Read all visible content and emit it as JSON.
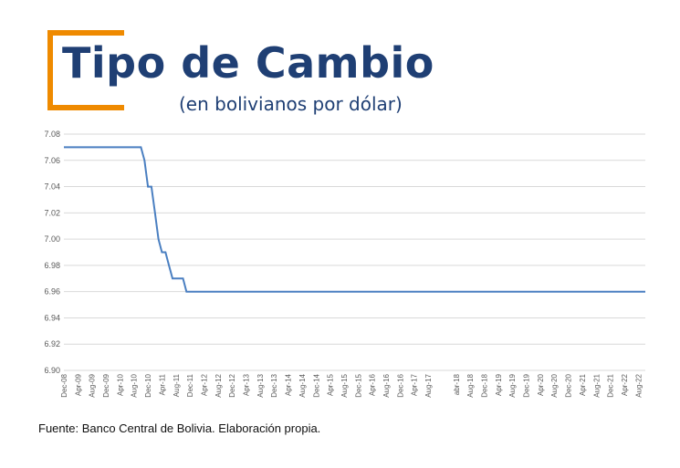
{
  "header": {
    "title": "Tipo de Cambio",
    "subtitle": "(en bolivianos por dólar)"
  },
  "footer": {
    "source": "Fuente: Banco Central de Bolivia. Elaboración propia."
  },
  "colors": {
    "title": "#1f3f74",
    "accent": "#ef8a00",
    "line": "#4a7fc1",
    "grid": "#d9d9d9",
    "tick_text": "#595959"
  },
  "chart_data": {
    "type": "line",
    "title": "",
    "xlabel": "",
    "ylabel": "",
    "ylim": [
      6.9,
      7.08
    ],
    "y_ticks": [
      "7.08",
      "7.06",
      "7.04",
      "7.02",
      "7.00",
      "6.98",
      "6.96",
      "6.94",
      "6.92",
      "6.90"
    ],
    "grid": true,
    "legend": "none",
    "x_tick_labels": [
      "Dec-08",
      "Apr-09",
      "Aug-09",
      "Dec-09",
      "Apr-10",
      "Aug-10",
      "Dec-10",
      "Apr-11",
      "Aug-11",
      "Dec-11",
      "Apr-12",
      "Aug-12",
      "Dec-12",
      "Apr-13",
      "Aug-13",
      "Dec-13",
      "Apr-14",
      "Aug-14",
      "Dec-14",
      "Apr-15",
      "Aug-15",
      "Dec-15",
      "Apr-16",
      "Aug-16",
      "Dec-16",
      "Apr-17",
      "Aug-17",
      "abr-18",
      "Aug-18",
      "Dec-18",
      "Apr-19",
      "Aug-19",
      "Dec-19",
      "Apr-20",
      "Aug-20",
      "Dec-20",
      "Apr-21",
      "Aug-21",
      "Dec-21",
      "Apr-22",
      "Aug-22"
    ],
    "series": [
      {
        "points": [
          [
            "Dec-08",
            7.07
          ],
          [
            "Apr-09",
            7.07
          ],
          [
            "Aug-09",
            7.07
          ],
          [
            "Dec-09",
            7.07
          ],
          [
            "Apr-10",
            7.07
          ],
          [
            "Aug-10",
            7.07
          ],
          [
            "Oct-10",
            7.07
          ],
          [
            "Nov-10",
            7.06
          ],
          [
            "Dec-10",
            7.04
          ],
          [
            "Jan-11",
            7.04
          ],
          [
            "Feb-11",
            7.02
          ],
          [
            "Mar-11",
            7.0
          ],
          [
            "Apr-11",
            6.99
          ],
          [
            "May-11",
            6.99
          ],
          [
            "Jun-11",
            6.98
          ],
          [
            "Jul-11",
            6.97
          ],
          [
            "Aug-11",
            6.97
          ],
          [
            "Sep-11",
            6.97
          ],
          [
            "Oct-11",
            6.97
          ],
          [
            "Nov-11",
            6.96
          ],
          [
            "Dec-11",
            6.96
          ],
          [
            "Aug-22",
            6.96
          ],
          [
            "Oct-22",
            6.96
          ]
        ]
      }
    ]
  }
}
